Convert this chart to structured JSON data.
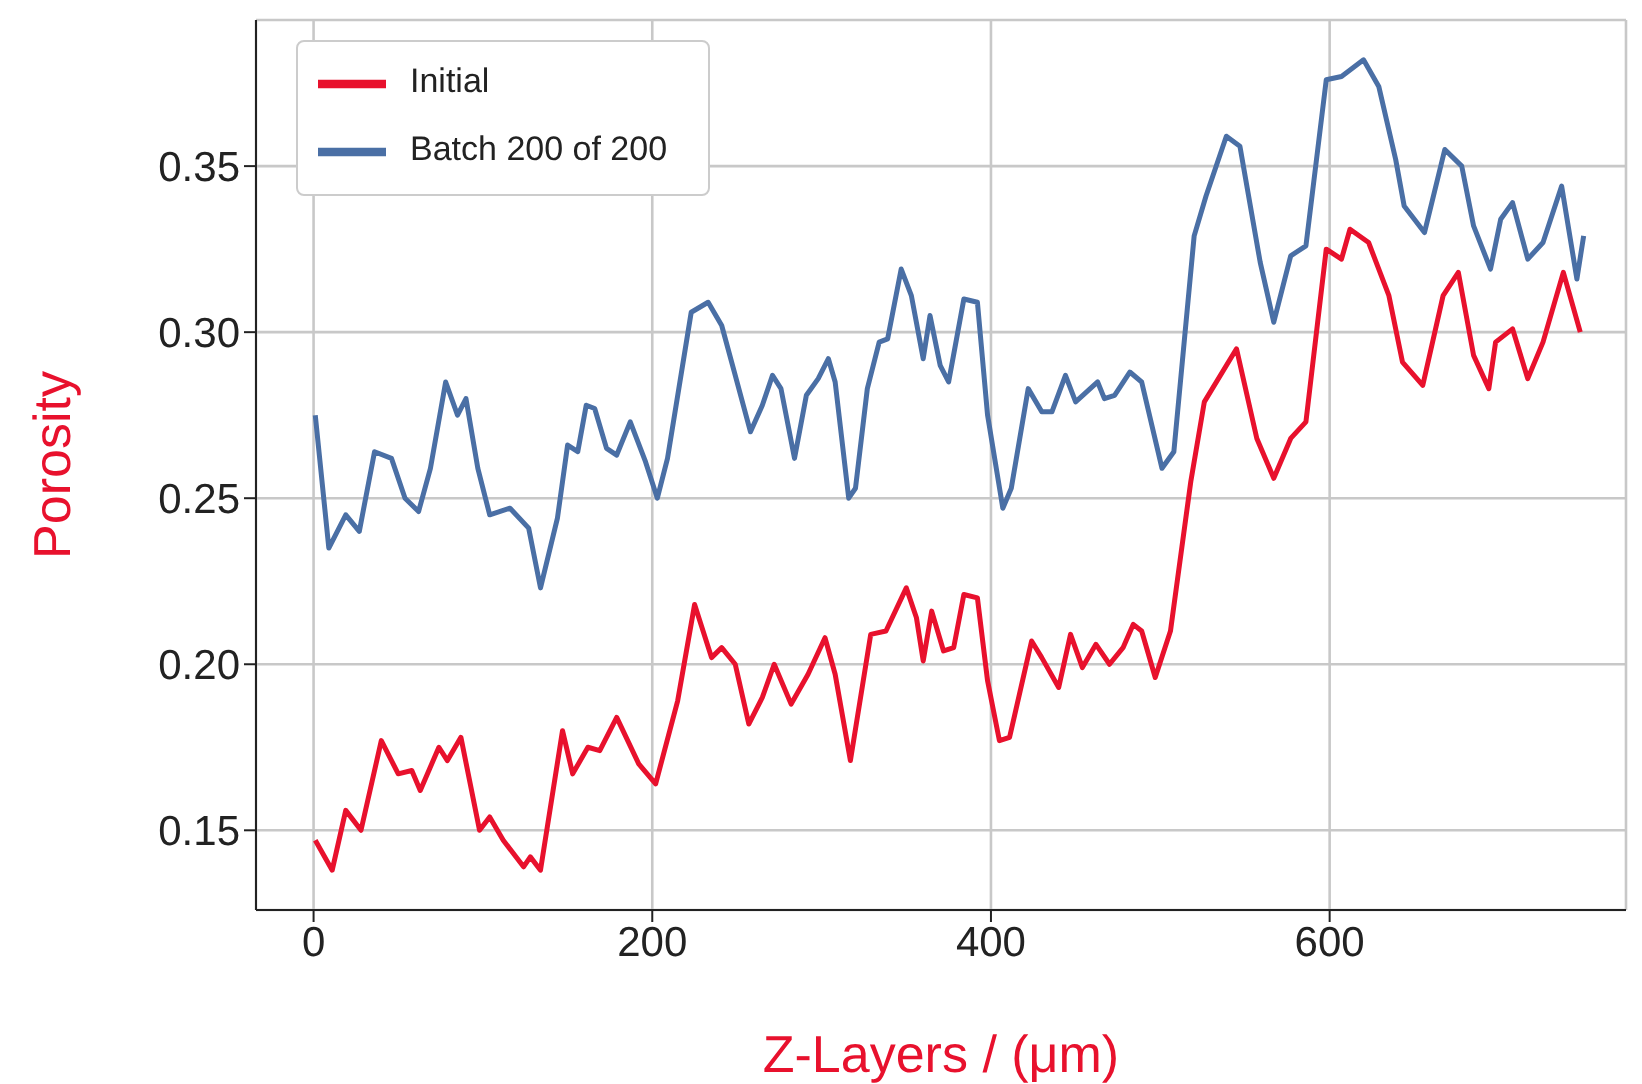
{
  "chart_data": {
    "type": "line",
    "xlabel": "Z-Layers / (μm)",
    "ylabel": "Porosity",
    "xlim": [
      -34,
      775
    ],
    "ylim": [
      0.126,
      0.394
    ],
    "xticks": [
      0,
      200,
      400,
      600
    ],
    "yticks": [
      0.15,
      {
        "value": 0.2,
        "label": "0.20"
      },
      0.25,
      {
        "value": 0.3,
        "label": "0.30"
      },
      0.35
    ],
    "grid": true,
    "legend": "top left",
    "series": [
      {
        "name": "Initial",
        "color": "#e8112d",
        "x": [
          1,
          11,
          19,
          28,
          40,
          50,
          58,
          63,
          74,
          79,
          87,
          98,
          104,
          112,
          124,
          128,
          134,
          147,
          153,
          162,
          169,
          179,
          192,
          202,
          215,
          225,
          235,
          241,
          249,
          257,
          265,
          272,
          282,
          292,
          302,
          308,
          317,
          329,
          338,
          350,
          356,
          360,
          365,
          372,
          378,
          384,
          392,
          398,
          405,
          411,
          424,
          430,
          440,
          447,
          454,
          462,
          470,
          478,
          484,
          489,
          497,
          506,
          518,
          526,
          545,
          557,
          567,
          577,
          586,
          598,
          607,
          612,
          623,
          635,
          643,
          655,
          667,
          676,
          685,
          694,
          698,
          708,
          717,
          726,
          738,
          748
        ],
        "values": [
          0.147,
          0.138,
          0.156,
          0.15,
          0.177,
          0.167,
          0.168,
          0.162,
          0.175,
          0.171,
          0.178,
          0.15,
          0.154,
          0.147,
          0.139,
          0.142,
          0.138,
          0.18,
          0.167,
          0.175,
          0.174,
          0.184,
          0.17,
          0.164,
          0.189,
          0.218,
          0.202,
          0.205,
          0.2,
          0.182,
          0.19,
          0.2,
          0.188,
          0.197,
          0.208,
          0.197,
          0.171,
          0.209,
          0.21,
          0.223,
          0.214,
          0.201,
          0.216,
          0.204,
          0.205,
          0.221,
          0.22,
          0.195,
          0.177,
          0.178,
          0.207,
          0.202,
          0.193,
          0.209,
          0.199,
          0.206,
          0.2,
          0.205,
          0.212,
          0.21,
          0.196,
          0.21,
          0.255,
          0.279,
          0.295,
          0.268,
          0.256,
          0.268,
          0.273,
          0.325,
          0.322,
          0.331,
          0.327,
          0.311,
          0.291,
          0.284,
          0.311,
          0.318,
          0.293,
          0.283,
          0.297,
          0.301,
          0.286,
          0.297,
          0.318,
          0.3
        ]
      },
      {
        "name": "Batch 200 of 200",
        "color": "#4a6fa5",
        "x": [
          1,
          9,
          19,
          27,
          36,
          46,
          54,
          62,
          69,
          78,
          85,
          90,
          97,
          104,
          116,
          127,
          134,
          144,
          150,
          156,
          161,
          166,
          173,
          179,
          187,
          196,
          203,
          209,
          223,
          233,
          241,
          249,
          258,
          265,
          271,
          276,
          284,
          291,
          298,
          304,
          308,
          316,
          320,
          327,
          334,
          339,
          347,
          353,
          360,
          364,
          370,
          375,
          384,
          392,
          398,
          407,
          412,
          422,
          430,
          436,
          444,
          450,
          463,
          467,
          473,
          482,
          489,
          501,
          508,
          520,
          527,
          539,
          547,
          559,
          567,
          577,
          586,
          598,
          607,
          620,
          629,
          639,
          644,
          656,
          668,
          678,
          685,
          695,
          701,
          708,
          717,
          726,
          737,
          746,
          750
        ],
        "values": [
          0.275,
          0.235,
          0.245,
          0.24,
          0.264,
          0.262,
          0.25,
          0.246,
          0.259,
          0.285,
          0.275,
          0.28,
          0.259,
          0.245,
          0.247,
          0.241,
          0.223,
          0.244,
          0.266,
          0.264,
          0.278,
          0.277,
          0.265,
          0.263,
          0.273,
          0.261,
          0.25,
          0.262,
          0.306,
          0.309,
          0.302,
          0.287,
          0.27,
          0.278,
          0.287,
          0.283,
          0.262,
          0.281,
          0.286,
          0.292,
          0.285,
          0.25,
          0.253,
          0.283,
          0.297,
          0.298,
          0.319,
          0.311,
          0.292,
          0.305,
          0.29,
          0.285,
          0.31,
          0.309,
          0.275,
          0.247,
          0.253,
          0.283,
          0.276,
          0.276,
          0.287,
          0.279,
          0.285,
          0.28,
          0.281,
          0.288,
          0.285,
          0.259,
          0.264,
          0.329,
          0.341,
          0.359,
          0.356,
          0.321,
          0.303,
          0.323,
          0.326,
          0.376,
          0.377,
          0.382,
          0.374,
          0.352,
          0.338,
          0.33,
          0.355,
          0.35,
          0.332,
          0.319,
          0.334,
          0.339,
          0.322,
          0.327,
          0.344,
          0.316,
          0.329
        ]
      }
    ]
  }
}
